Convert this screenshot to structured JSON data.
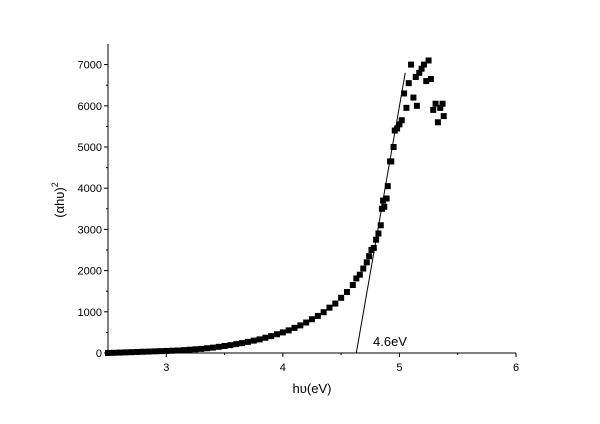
{
  "chart_data": {
    "type": "scatter",
    "title": "",
    "xlabel": "hυ(eV)",
    "ylabel": "(αhυ)",
    "ylabel_superscript": "2",
    "xlim": [
      2.5,
      6.0
    ],
    "ylim": [
      0,
      7500
    ],
    "xticks": [
      "3",
      "4",
      "5",
      "6"
    ],
    "yticks": [
      "0",
      "1000",
      "2000",
      "3000",
      "4000",
      "5000",
      "6000",
      "7000"
    ],
    "grid": false,
    "legend": "none",
    "marker": "filled-square",
    "color": "#000000",
    "series": [
      {
        "x": [
          2.5,
          2.55,
          2.6,
          2.65,
          2.7,
          2.75,
          2.8,
          2.85,
          2.9,
          2.95,
          3.0,
          3.05,
          3.1,
          3.15,
          3.2,
          3.25,
          3.3,
          3.35,
          3.4,
          3.45,
          3.5,
          3.55,
          3.6,
          3.65,
          3.7,
          3.75,
          3.8,
          3.85,
          3.9,
          3.95,
          4.0,
          4.05,
          4.1,
          4.15,
          4.2,
          4.25,
          4.3,
          4.35,
          4.4,
          4.45,
          4.5,
          4.55,
          4.6,
          4.63,
          4.66,
          4.69,
          4.72,
          4.74,
          4.76,
          4.78,
          4.8,
          4.82,
          4.84,
          4.85,
          4.86,
          4.87,
          4.89,
          4.9,
          4.92,
          4.93,
          4.95,
          4.96,
          4.98,
          5.0,
          5.02,
          5.04,
          5.06,
          5.08,
          5.1,
          5.12,
          5.14,
          5.15,
          5.17,
          5.19,
          5.21,
          5.23,
          5.25,
          5.27,
          5.29,
          5.31,
          5.33,
          5.35,
          5.37,
          5.38
        ],
        "y": [
          0,
          5,
          10,
          15,
          20,
          25,
          30,
          35,
          40,
          45,
          50,
          55,
          60,
          70,
          80,
          90,
          100,
          115,
          130,
          150,
          170,
          190,
          215,
          240,
          270,
          300,
          330,
          370,
          410,
          455,
          500,
          550,
          610,
          670,
          740,
          820,
          900,
          990,
          1100,
          1200,
          1340,
          1480,
          1650,
          1810,
          1900,
          2050,
          2200,
          2350,
          2500,
          2550,
          2750,
          2900,
          3100,
          3500,
          3700,
          3550,
          3750,
          4050,
          4650,
          4650,
          5000,
          5400,
          5450,
          5550,
          5650,
          6300,
          5950,
          6550,
          7000,
          6200,
          6700,
          6000,
          6800,
          6900,
          7000,
          6600,
          7100,
          6650,
          5900,
          6050,
          5600,
          5950,
          6050,
          5750
        ]
      }
    ],
    "fit_line": {
      "x": [
        4.63,
        5.05
      ],
      "y": [
        0,
        6800
      ]
    },
    "annotation": "4.6eV"
  }
}
